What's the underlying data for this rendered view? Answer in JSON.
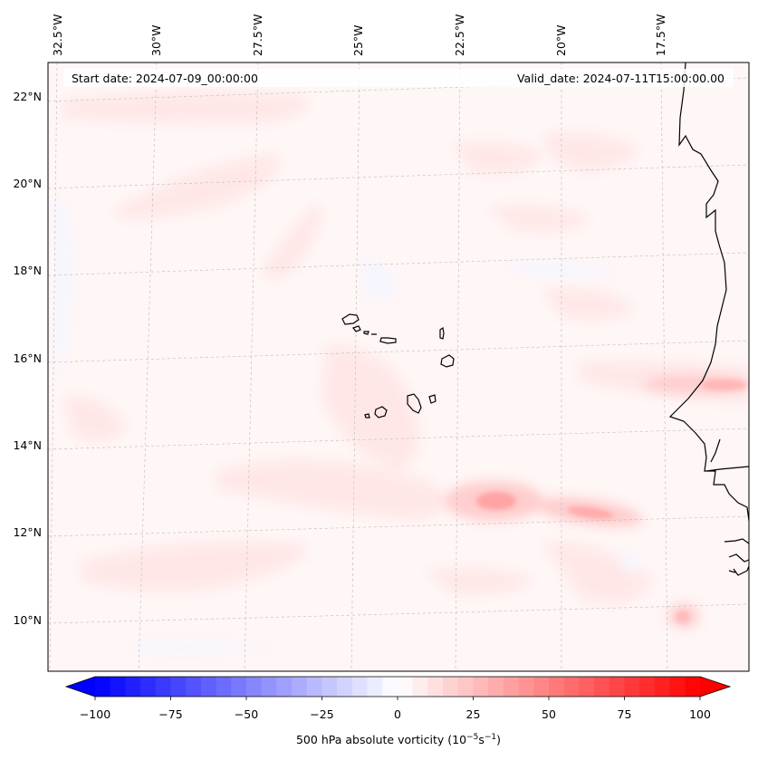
{
  "header": {
    "start_date": "Start date: 2024-07-09_00:00:00",
    "valid_date": "Valid_date: 2024-07-11T15:00:00.00"
  },
  "map": {
    "lon_labels": [
      "32.5°W",
      "30°W",
      "27.5°W",
      "25°W",
      "22.5°W",
      "20°W",
      "17.5°W"
    ],
    "lat_labels": [
      "22°N",
      "20°N",
      "18°N",
      "16°N",
      "14°N",
      "12°N",
      "10°N"
    ],
    "field": "500 hPa absolute vorticity",
    "features": [
      "Cabo Verde islands",
      "West African coastline"
    ]
  },
  "colorbar": {
    "tick_labels": [
      "−100",
      "−75",
      "−50",
      "−25",
      "0",
      "25",
      "50",
      "75",
      "100"
    ],
    "label": "500 hPa absolute vorticity (10",
    "label_exp1": "−5",
    "label_mid": "s",
    "label_exp2": "−1",
    "label_end": ")",
    "min": -100,
    "max": 100,
    "levels": 41,
    "neg_color": "#0000ff",
    "mid_color": "#ffffff",
    "pos_color": "#ff0000"
  },
  "colors": {
    "background_wash": "#fff6f6",
    "coastline": "#000000",
    "gridline": "#bbbbbb"
  }
}
